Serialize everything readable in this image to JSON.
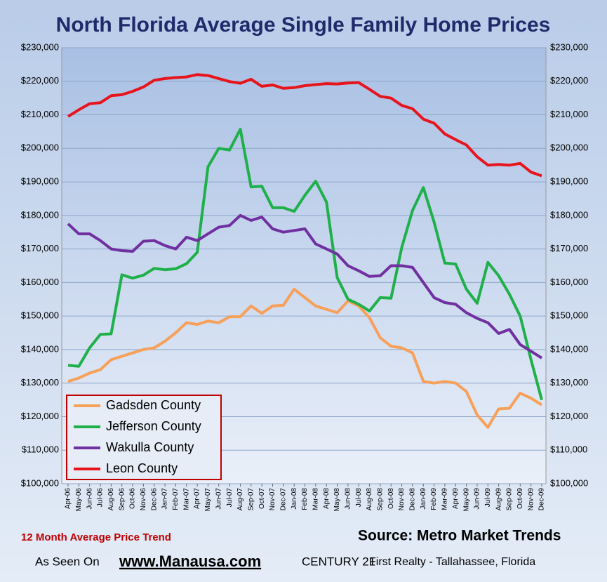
{
  "chart_data": {
    "type": "line",
    "title": "North Florida Average Single Family Home Prices",
    "annotations": {
      "subtitle": "12 Month Average Price Trend",
      "source": "Source: Metro Market Trends",
      "seen": "As Seen On",
      "site": "www.Manausa.com",
      "company": "CENTURY 21",
      "office": "First Realty - Tallahassee, Florida"
    },
    "categories": [
      "Apr-06",
      "May-06",
      "Jun-06",
      "Jul-06",
      "Aug-06",
      "Sep-06",
      "Oct-06",
      "Nov-06",
      "Dec-06",
      "Jan-07",
      "Feb-07",
      "Mar-07",
      "Apr-07",
      "May-07",
      "Jun-07",
      "Jul-07",
      "Aug-07",
      "Sep-07",
      "Oct-07",
      "Nov-07",
      "Dec-07",
      "Jan-08",
      "Feb-08",
      "Mar-08",
      "Apr-08",
      "May-08",
      "Jun-08",
      "Jul-08",
      "Aug-08",
      "Sep-08",
      "Oct-08",
      "Nov-08",
      "Dec-08",
      "Jan-09",
      "Feb-09",
      "Mar-09",
      "Apr-09",
      "May-09",
      "Jun-09",
      "Jul-09",
      "Aug-09",
      "Sep-09",
      "Oct-09",
      "Nov-09",
      "Dec-09"
    ],
    "series": [
      {
        "name": "Gadsden County",
        "color": "#f7a05a",
        "values": [
          130500,
          131500,
          133000,
          134000,
          137000,
          138000,
          139000,
          140000,
          140500,
          142500,
          145000,
          148000,
          147500,
          148500,
          148000,
          149800,
          149800,
          153000,
          150800,
          153000,
          153200,
          158000,
          155500,
          153000,
          152000,
          151000,
          154500,
          153000,
          149500,
          143500,
          141000,
          140500,
          139000,
          130500,
          130000,
          130500,
          130000,
          127500,
          120500,
          116800,
          122300,
          122500,
          127000,
          125500,
          123500
        ]
      },
      {
        "name": "Jefferson County",
        "color": "#1fb04a",
        "values": [
          135300,
          135000,
          140500,
          144500,
          144700,
          162300,
          161300,
          162200,
          164200,
          163800,
          164100,
          165600,
          169000,
          194500,
          200000,
          199500,
          205700,
          188500,
          188700,
          182300,
          182300,
          181200,
          186000,
          190200,
          184000,
          161500,
          155000,
          153500,
          151500,
          155500,
          155300,
          170500,
          181500,
          188300,
          178000,
          165800,
          165500,
          158000,
          153800,
          166000,
          162000,
          156500,
          150000,
          137000,
          125000
        ]
      },
      {
        "name": "Wakulla County",
        "color": "#7030a0",
        "values": [
          177500,
          174500,
          174500,
          172500,
          170000,
          169500,
          169300,
          172300,
          172500,
          171000,
          170000,
          173500,
          172500,
          174500,
          176500,
          177000,
          180000,
          178500,
          179500,
          176000,
          175000,
          175500,
          176000,
          171500,
          170000,
          168500,
          165000,
          163500,
          161800,
          162000,
          165000,
          165000,
          164500,
          160000,
          155500,
          154000,
          153500,
          151000,
          149300,
          148000,
          144800,
          146000,
          141500,
          139500,
          137500
        ]
      },
      {
        "name": "Leon County",
        "color": "#e8141c",
        "values": [
          209500,
          211500,
          213300,
          213600,
          215700,
          216000,
          217000,
          218300,
          220300,
          220800,
          221100,
          221300,
          222000,
          221700,
          220800,
          219900,
          219400,
          220600,
          218500,
          218900,
          217900,
          218100,
          218700,
          219000,
          219300,
          219200,
          219500,
          219600,
          217600,
          215500,
          215000,
          212800,
          211800,
          208700,
          207500,
          204300,
          202600,
          201000,
          197500,
          195000,
          195200,
          195000,
          195500,
          192900,
          191800
        ]
      }
    ],
    "ylim": [
      100000,
      230000
    ],
    "yticks": [
      {
        "value": 100000,
        "label": "$100,000"
      },
      {
        "value": 110000,
        "label": "$110,000"
      },
      {
        "value": 120000,
        "label": "$120,000"
      },
      {
        "value": 130000,
        "label": "$130,000"
      },
      {
        "value": 140000,
        "label": "$140,000"
      },
      {
        "value": 150000,
        "label": "$150,000"
      },
      {
        "value": 160000,
        "label": "$160,000"
      },
      {
        "value": 170000,
        "label": "$170,000"
      },
      {
        "value": 180000,
        "label": "$180,000"
      },
      {
        "value": 190000,
        "label": "$190,000"
      },
      {
        "value": 200000,
        "label": "$200,000"
      },
      {
        "value": 210000,
        "label": "$210,000"
      },
      {
        "value": 220000,
        "label": "$220,000"
      },
      {
        "value": 230000,
        "label": "$230,000"
      }
    ],
    "grid": true,
    "legend": "lower left"
  }
}
